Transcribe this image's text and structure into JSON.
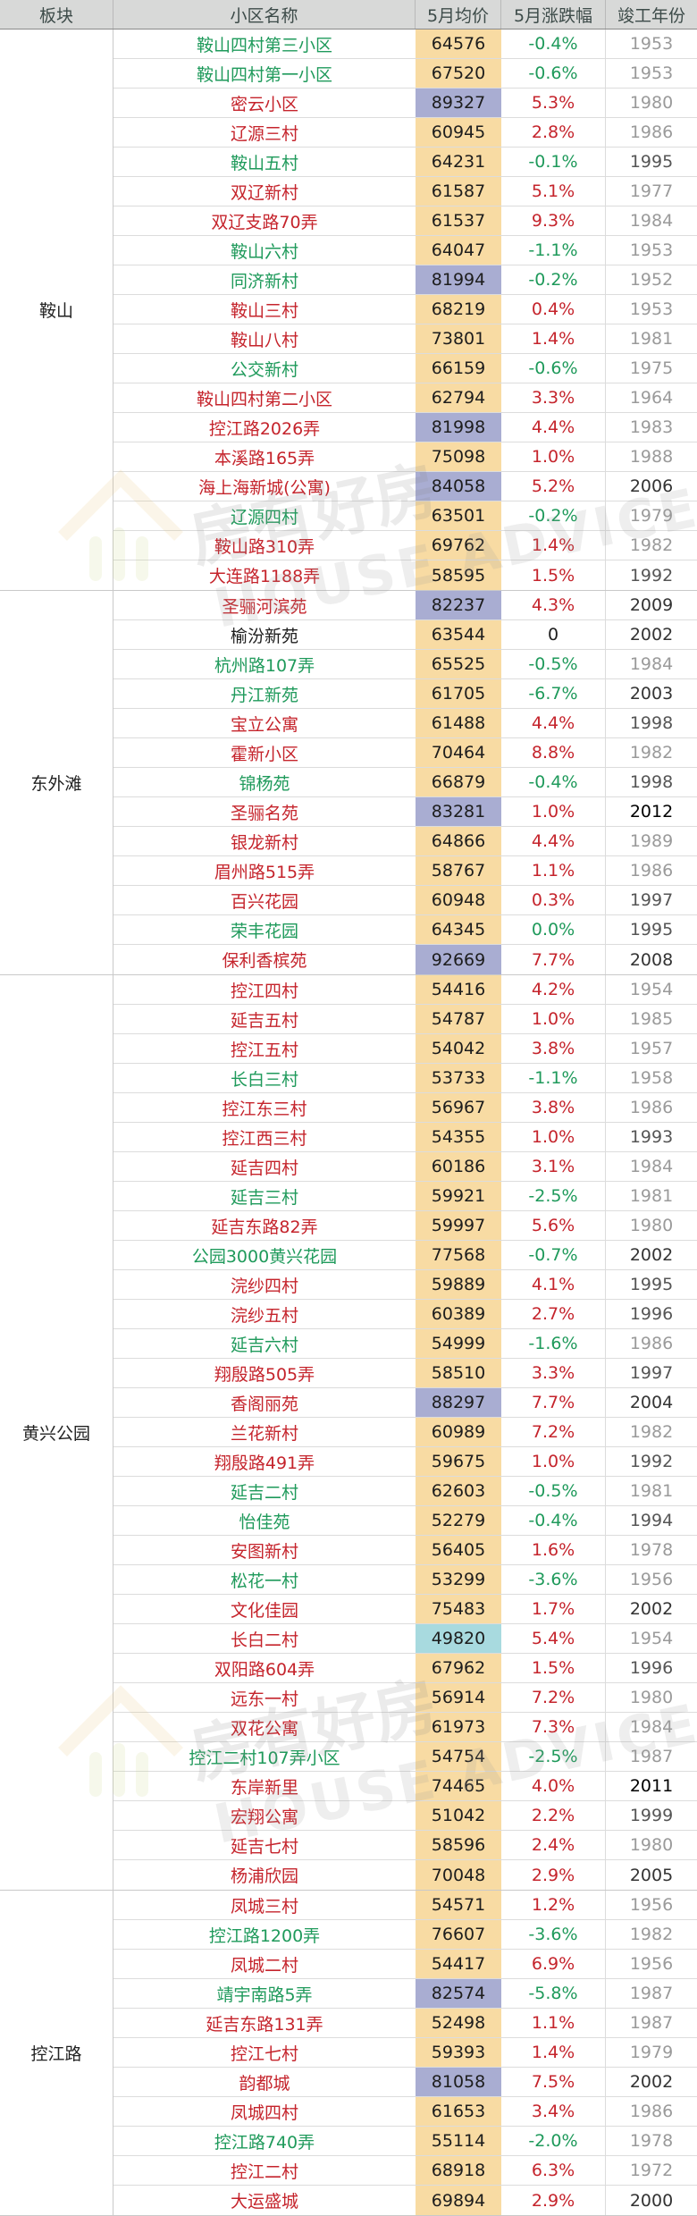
{
  "header": {
    "col_area": "板块",
    "col_name": "小区名称",
    "col_price": "5月均价",
    "col_change": "5月涨跌幅",
    "col_year": "竣工年份"
  },
  "watermark": {
    "cn": "房有好房",
    "en": "HOUSE ADVICE"
  },
  "colors": {
    "up": "#c5242c",
    "down": "#1f9a5b",
    "flat": "#1d1d1d",
    "price_bg": "#f8dba3",
    "price_highlight_purple": "#a9add2",
    "price_highlight_cyan": "#a8dadf",
    "header_bg": "#d8d9d8"
  },
  "sections": [
    {
      "area": "鞍山",
      "rows": [
        {
          "name": "鞍山四村第三小区",
          "price": "64576",
          "change": "-0.4%",
          "year": "1953"
        },
        {
          "name": "鞍山四村第一小区",
          "price": "67520",
          "change": "-0.6%",
          "year": "1953"
        },
        {
          "name": "密云小区",
          "price": "89327",
          "change": "5.3%",
          "year": "1980",
          "hl": "purple"
        },
        {
          "name": "辽源三村",
          "price": "60945",
          "change": "2.8%",
          "year": "1986"
        },
        {
          "name": "鞍山五村",
          "price": "64231",
          "change": "-0.1%",
          "year": "1995"
        },
        {
          "name": "双辽新村",
          "price": "61587",
          "change": "5.1%",
          "year": "1977"
        },
        {
          "name": "双辽支路70弄",
          "price": "61537",
          "change": "9.3%",
          "year": "1984"
        },
        {
          "name": "鞍山六村",
          "price": "64047",
          "change": "-1.1%",
          "year": "1953"
        },
        {
          "name": "同济新村",
          "price": "81994",
          "change": "-0.2%",
          "year": "1952",
          "hl": "purple"
        },
        {
          "name": "鞍山三村",
          "price": "68219",
          "change": "0.4%",
          "year": "1953"
        },
        {
          "name": "鞍山八村",
          "price": "73801",
          "change": "1.4%",
          "year": "1981"
        },
        {
          "name": "公交新村",
          "price": "66159",
          "change": "-0.6%",
          "year": "1975"
        },
        {
          "name": "鞍山四村第二小区",
          "price": "62794",
          "change": "3.3%",
          "year": "1964"
        },
        {
          "name": "控江路2026弄",
          "price": "81998",
          "change": "4.4%",
          "year": "1983",
          "hl": "purple"
        },
        {
          "name": "本溪路165弄",
          "price": "75098",
          "change": "1.0%",
          "year": "1988"
        },
        {
          "name": "海上海新城(公寓)",
          "price": "84058",
          "change": "5.2%",
          "year": "2006",
          "hl": "purple"
        },
        {
          "name": "辽源四村",
          "price": "63501",
          "change": "-0.2%",
          "year": "1979"
        },
        {
          "name": "鞍山路310弄",
          "price": "69762",
          "change": "1.4%",
          "year": "1982"
        },
        {
          "name": "大连路1188弄",
          "price": "58595",
          "change": "1.5%",
          "year": "1992"
        }
      ]
    },
    {
      "area": "东外滩",
      "rows": [
        {
          "name": "圣骊河滨苑",
          "price": "82237",
          "change": "4.3%",
          "year": "2009",
          "hl": "purple"
        },
        {
          "name": "榆汾新苑",
          "price": "63544",
          "change": "0",
          "year": "2002"
        },
        {
          "name": "杭州路107弄",
          "price": "65525",
          "change": "-0.5%",
          "year": "1984"
        },
        {
          "name": "丹江新苑",
          "price": "61705",
          "change": "-6.7%",
          "year": "2003"
        },
        {
          "name": "宝立公寓",
          "price": "61488",
          "change": "4.4%",
          "year": "1998"
        },
        {
          "name": "霍新小区",
          "price": "70464",
          "change": "8.8%",
          "year": "1982"
        },
        {
          "name": "锦杨苑",
          "price": "66879",
          "change": "-0.4%",
          "year": "1998"
        },
        {
          "name": "圣骊名苑",
          "price": "83281",
          "change": "1.0%",
          "year": "2012",
          "hl": "purple"
        },
        {
          "name": "银龙新村",
          "price": "64866",
          "change": "4.4%",
          "year": "1989"
        },
        {
          "name": "眉州路515弄",
          "price": "58767",
          "change": "1.1%",
          "year": "1986"
        },
        {
          "name": "百兴花园",
          "price": "60948",
          "change": "0.3%",
          "year": "1997"
        },
        {
          "name": "荣丰花园",
          "price": "64345",
          "change": "0.0%",
          "year": "1995",
          "tone": "down"
        },
        {
          "name": "保利香槟苑",
          "price": "92669",
          "change": "7.7%",
          "year": "2008",
          "hl": "purple"
        }
      ]
    },
    {
      "area": "黄兴公园",
      "rows": [
        {
          "name": "控江四村",
          "price": "54416",
          "change": "4.2%",
          "year": "1954"
        },
        {
          "name": "延吉五村",
          "price": "54787",
          "change": "1.0%",
          "year": "1985"
        },
        {
          "name": "控江五村",
          "price": "54042",
          "change": "3.8%",
          "year": "1957"
        },
        {
          "name": "长白三村",
          "price": "53733",
          "change": "-1.1%",
          "year": "1958"
        },
        {
          "name": "控江东三村",
          "price": "56967",
          "change": "3.8%",
          "year": "1986"
        },
        {
          "name": "控江西三村",
          "price": "54355",
          "change": "1.0%",
          "year": "1993"
        },
        {
          "name": "延吉四村",
          "price": "60186",
          "change": "3.1%",
          "year": "1984"
        },
        {
          "name": "延吉三村",
          "price": "59921",
          "change": "-2.5%",
          "year": "1981"
        },
        {
          "name": "延吉东路82弄",
          "price": "59997",
          "change": "5.6%",
          "year": "1980"
        },
        {
          "name": "公园3000黄兴花园",
          "price": "77568",
          "change": "-0.7%",
          "year": "2002"
        },
        {
          "name": "浣纱四村",
          "price": "59889",
          "change": "4.1%",
          "year": "1995"
        },
        {
          "name": "浣纱五村",
          "price": "60389",
          "change": "2.7%",
          "year": "1996"
        },
        {
          "name": "延吉六村",
          "price": "54999",
          "change": "-1.6%",
          "year": "1986"
        },
        {
          "name": "翔殷路505弄",
          "price": "58510",
          "change": "3.3%",
          "year": "1997"
        },
        {
          "name": "香阁丽苑",
          "price": "88297",
          "change": "7.7%",
          "year": "2004",
          "hl": "purple"
        },
        {
          "name": "兰花新村",
          "price": "60989",
          "change": "7.2%",
          "year": "1982"
        },
        {
          "name": "翔殷路491弄",
          "price": "59675",
          "change": "1.0%",
          "year": "1992"
        },
        {
          "name": "延吉二村",
          "price": "62603",
          "change": "-0.5%",
          "year": "1981"
        },
        {
          "name": "怡佳苑",
          "price": "52279",
          "change": "-0.4%",
          "year": "1994"
        },
        {
          "name": "安图新村",
          "price": "56405",
          "change": "1.6%",
          "year": "1978"
        },
        {
          "name": "松花一村",
          "price": "53299",
          "change": "-3.6%",
          "year": "1956"
        },
        {
          "name": "文化佳园",
          "price": "75483",
          "change": "1.7%",
          "year": "2002"
        },
        {
          "name": "长白二村",
          "price": "49820",
          "change": "5.4%",
          "year": "1954",
          "hl": "cyan"
        },
        {
          "name": "双阳路604弄",
          "price": "67962",
          "change": "1.5%",
          "year": "1996"
        },
        {
          "name": "远东一村",
          "price": "56914",
          "change": "7.2%",
          "year": "1980"
        },
        {
          "name": "双花公寓",
          "price": "61973",
          "change": "7.3%",
          "year": "1984"
        },
        {
          "name": "控江二村107弄小区",
          "price": "54754",
          "change": "-2.5%",
          "year": "1987"
        },
        {
          "name": "东岸新里",
          "price": "74465",
          "change": "4.0%",
          "year": "2011"
        },
        {
          "name": "宏翔公寓",
          "price": "51042",
          "change": "2.2%",
          "year": "1999"
        },
        {
          "name": "延吉七村",
          "price": "58596",
          "change": "2.4%",
          "year": "1980"
        },
        {
          "name": "杨浦欣园",
          "price": "70048",
          "change": "2.9%",
          "year": "2005"
        }
      ]
    },
    {
      "area": "控江路",
      "rows": [
        {
          "name": "凤城三村",
          "price": "54571",
          "change": "1.2%",
          "year": "1956"
        },
        {
          "name": "控江路1200弄",
          "price": "76607",
          "change": "-3.6%",
          "year": "1982"
        },
        {
          "name": "凤城二村",
          "price": "54417",
          "change": "6.9%",
          "year": "1956"
        },
        {
          "name": "靖宇南路5弄",
          "price": "82574",
          "change": "-5.8%",
          "year": "1987",
          "hl": "purple"
        },
        {
          "name": "延吉东路131弄",
          "price": "52498",
          "change": "1.1%",
          "year": "1987"
        },
        {
          "name": "控江七村",
          "price": "59393",
          "change": "1.4%",
          "year": "1979"
        },
        {
          "name": "韵都城",
          "price": "81058",
          "change": "7.5%",
          "year": "2002",
          "hl": "purple"
        },
        {
          "name": "凤城四村",
          "price": "61653",
          "change": "3.4%",
          "year": "1986"
        },
        {
          "name": "控江路740弄",
          "price": "55114",
          "change": "-2.0%",
          "year": "1978"
        },
        {
          "name": "控江二村",
          "price": "68918",
          "change": "6.3%",
          "year": "1972"
        },
        {
          "name": "大运盛城",
          "price": "69894",
          "change": "2.9%",
          "year": "2000"
        }
      ]
    }
  ]
}
